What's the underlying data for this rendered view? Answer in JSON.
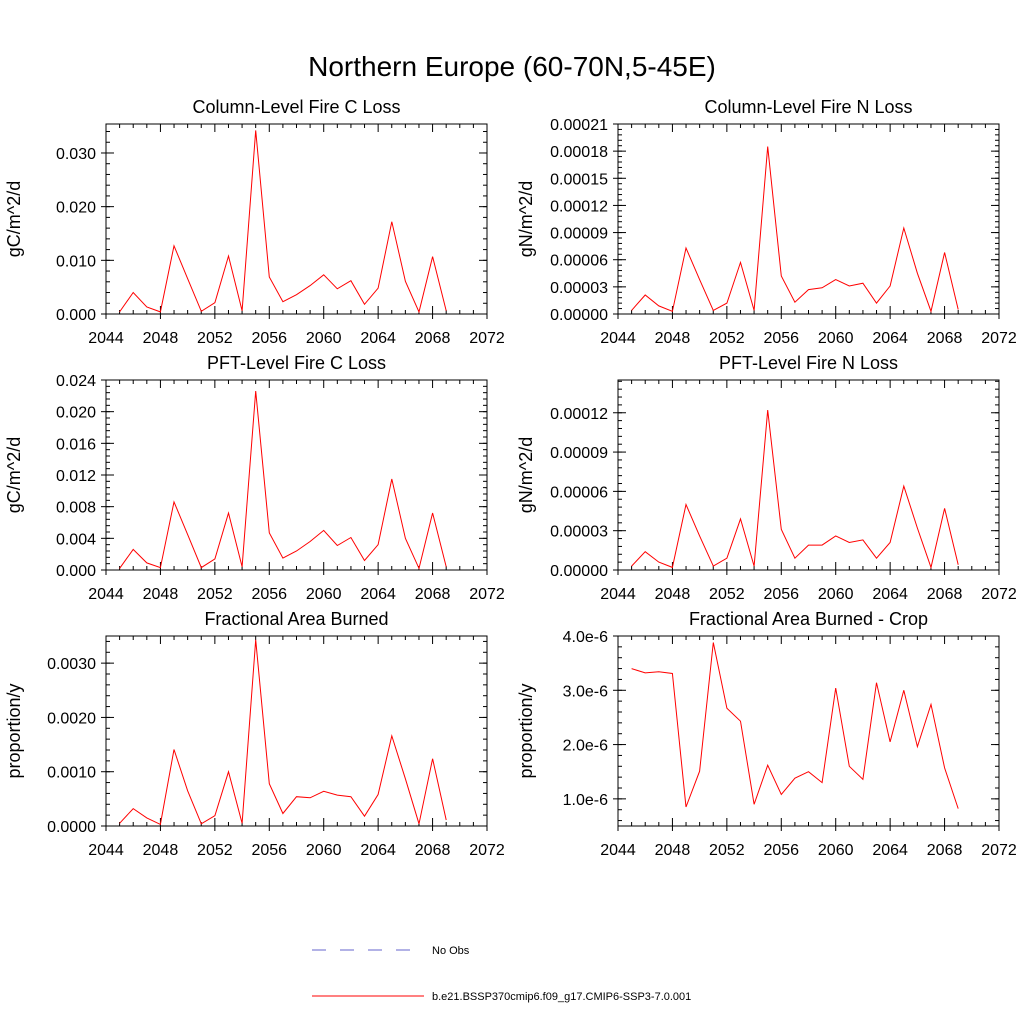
{
  "figure": {
    "title": "Northern Europe (60-70N,5-45E)",
    "legend": [
      {
        "label": "No Obs",
        "color": "#6666cc",
        "dashed": true
      },
      {
        "label": "b.e21.BSSP370cmip6.f09_g17.CMIP6-SSP3-7.0.001",
        "color": "#ff0000",
        "dashed": false
      }
    ]
  },
  "chart_data": [
    {
      "type": "line",
      "title": "Column-Level Fire C Loss",
      "ylabel": "gC/m^2/d",
      "xlim": [
        2044,
        2072
      ],
      "ylim": [
        0,
        0.0354
      ],
      "xticks": [
        "2044",
        "2048",
        "2052",
        "2056",
        "2060",
        "2064",
        "2068",
        "2072"
      ],
      "yticks": [
        "0.000",
        "0.010",
        "0.020",
        "0.030"
      ],
      "ytick_values": [
        0,
        0.01,
        0.02,
        0.03
      ],
      "x": [
        2045,
        2046,
        2047,
        2048,
        2049,
        2050,
        2051,
        2052,
        2053,
        2054,
        2055,
        2056,
        2057,
        2058,
        2059,
        2060,
        2061,
        2062,
        2063,
        2064,
        2065,
        2066,
        2067,
        2068,
        2069
      ],
      "series": [
        {
          "color": "#ff0000",
          "values": [
            0.0004,
            0.004,
            0.0013,
            0.0004,
            0.0127,
            0.0066,
            0.0005,
            0.0021,
            0.0108,
            0.0006,
            0.0342,
            0.0069,
            0.0023,
            0.0036,
            0.0053,
            0.0073,
            0.0047,
            0.0062,
            0.0018,
            0.0048,
            0.0172,
            0.0061,
            0.0004,
            0.0107,
            0.0006
          ]
        }
      ]
    },
    {
      "type": "line",
      "title": "Column-Level Fire N Loss",
      "ylabel": "gN/m^2/d",
      "xlim": [
        2044,
        2072
      ],
      "ylim": [
        0,
        0.00021
      ],
      "xticks": [
        "2044",
        "2048",
        "2052",
        "2056",
        "2060",
        "2064",
        "2068",
        "2072"
      ],
      "yticks": [
        "0.00000",
        "0.00003",
        "0.00006",
        "0.00009",
        "0.00012",
        "0.00015",
        "0.00018",
        "0.00021"
      ],
      "ytick_values": [
        0,
        3e-05,
        6e-05,
        9e-05,
        0.00012,
        0.00015,
        0.00018,
        0.00021
      ],
      "x": [
        2045,
        2046,
        2047,
        2048,
        2049,
        2050,
        2051,
        2052,
        2053,
        2054,
        2055,
        2056,
        2057,
        2058,
        2059,
        2060,
        2061,
        2062,
        2063,
        2064,
        2065,
        2066,
        2067,
        2068,
        2069
      ],
      "series": [
        {
          "color": "#ff0000",
          "values": [
            4e-06,
            2.1e-05,
            9e-06,
            3e-06,
            7.3e-05,
            3.8e-05,
            4e-06,
            1.2e-05,
            5.7e-05,
            4e-06,
            0.000185,
            4.2e-05,
            1.3e-05,
            2.7e-05,
            2.9e-05,
            3.8e-05,
            3.1e-05,
            3.4e-05,
            1.2e-05,
            3.1e-05,
            9.5e-05,
            4.5e-05,
            3e-06,
            6.8e-05,
            5e-06
          ]
        }
      ]
    },
    {
      "type": "line",
      "title": "PFT-Level Fire C Loss",
      "ylabel": "gC/m^2/d",
      "xlim": [
        2044,
        2072
      ],
      "ylim": [
        0,
        0.024
      ],
      "xticks": [
        "2044",
        "2048",
        "2052",
        "2056",
        "2060",
        "2064",
        "2068",
        "2072"
      ],
      "yticks": [
        "0.000",
        "0.004",
        "0.008",
        "0.012",
        "0.016",
        "0.020",
        "0.024"
      ],
      "ytick_values": [
        0,
        0.004,
        0.008,
        0.012,
        0.016,
        0.02,
        0.024
      ],
      "x": [
        2045,
        2046,
        2047,
        2048,
        2049,
        2050,
        2051,
        2052,
        2053,
        2054,
        2055,
        2056,
        2057,
        2058,
        2059,
        2060,
        2061,
        2062,
        2063,
        2064,
        2065,
        2066,
        2067,
        2068,
        2069
      ],
      "series": [
        {
          "color": "#ff0000",
          "values": [
            0.0002,
            0.0026,
            0.0009,
            0.0003,
            0.0086,
            0.0045,
            0.0003,
            0.0014,
            0.0072,
            0.0004,
            0.0226,
            0.0047,
            0.0015,
            0.0024,
            0.0036,
            0.005,
            0.0031,
            0.0041,
            0.0012,
            0.0032,
            0.0115,
            0.004,
            0.0002,
            0.0072,
            0.0004
          ]
        }
      ]
    },
    {
      "type": "line",
      "title": "PFT-Level Fire N Loss",
      "ylabel": "gN/m^2/d",
      "xlim": [
        2044,
        2072
      ],
      "ylim": [
        0,
        0.000145
      ],
      "xticks": [
        "2044",
        "2048",
        "2052",
        "2056",
        "2060",
        "2064",
        "2068",
        "2072"
      ],
      "yticks": [
        "0.00000",
        "0.00003",
        "0.00006",
        "0.00009",
        "0.00012"
      ],
      "ytick_values": [
        0,
        3e-05,
        6e-05,
        9e-05,
        0.00012
      ],
      "x": [
        2045,
        2046,
        2047,
        2048,
        2049,
        2050,
        2051,
        2052,
        2053,
        2054,
        2055,
        2056,
        2057,
        2058,
        2059,
        2060,
        2061,
        2062,
        2063,
        2064,
        2065,
        2066,
        2067,
        2068,
        2069
      ],
      "series": [
        {
          "color": "#ff0000",
          "values": [
            3e-06,
            1.4e-05,
            6e-06,
            2e-06,
            5e-05,
            2.6e-05,
            3e-06,
            9e-06,
            3.9e-05,
            3e-06,
            0.000122,
            3.1e-05,
            9e-06,
            1.9e-05,
            1.9e-05,
            2.6e-05,
            2.1e-05,
            2.3e-05,
            9e-06,
            2.1e-05,
            6.4e-05,
            3.2e-05,
            2e-06,
            4.7e-05,
            4e-06
          ]
        }
      ]
    },
    {
      "type": "line",
      "title": "Fractional Area Burned",
      "ylabel": "proportion/y",
      "xlim": [
        2044,
        2072
      ],
      "ylim": [
        0,
        0.0035
      ],
      "xticks": [
        "2044",
        "2048",
        "2052",
        "2056",
        "2060",
        "2064",
        "2068",
        "2072"
      ],
      "yticks": [
        "0.0000",
        "0.0010",
        "0.0020",
        "0.0030"
      ],
      "ytick_values": [
        0,
        0.001,
        0.002,
        0.003
      ],
      "x": [
        2045,
        2046,
        2047,
        2048,
        2049,
        2050,
        2051,
        2052,
        2053,
        2054,
        2055,
        2056,
        2057,
        2058,
        2059,
        2060,
        2061,
        2062,
        2063,
        2064,
        2065,
        2066,
        2067,
        2068,
        2069
      ],
      "series": [
        {
          "color": "#ff0000",
          "values": [
            5e-05,
            0.00032,
            0.00015,
            3e-05,
            0.00141,
            0.00065,
            4e-05,
            0.00019,
            0.001,
            5e-05,
            0.00343,
            0.00078,
            0.00023,
            0.00054,
            0.00052,
            0.00064,
            0.00057,
            0.00054,
            0.00018,
            0.00058,
            0.00166,
            0.00087,
            4e-05,
            0.00124,
            0.00011
          ]
        }
      ]
    },
    {
      "type": "line",
      "title": "Fractional Area Burned - Crop",
      "ylabel": "proportion/y",
      "xlim": [
        2044,
        2072
      ],
      "ylim": [
        5e-07,
        4e-06
      ],
      "xticks": [
        "2044",
        "2048",
        "2052",
        "2056",
        "2060",
        "2064",
        "2068",
        "2072"
      ],
      "yticks": [
        "1.0e-6",
        "2.0e-6",
        "3.0e-6",
        "4.0e-6"
      ],
      "ytick_values": [
        1e-06,
        2e-06,
        3e-06,
        4e-06
      ],
      "x": [
        2045,
        2046,
        2047,
        2048,
        2049,
        2050,
        2051,
        2052,
        2053,
        2054,
        2055,
        2056,
        2057,
        2058,
        2059,
        2060,
        2061,
        2062,
        2063,
        2064,
        2065,
        2066,
        2067,
        2068,
        2069
      ],
      "series": [
        {
          "color": "#ff0000",
          "values": [
            3.4e-06,
            3.32e-06,
            3.34e-06,
            3.31e-06,
            8.5e-07,
            1.51e-06,
            3.88e-06,
            2.67e-06,
            2.43e-06,
            9e-07,
            1.62e-06,
            1.08e-06,
            1.38e-06,
            1.5e-06,
            1.3e-06,
            3.04e-06,
            1.6e-06,
            1.36e-06,
            3.14e-06,
            2.05e-06,
            3e-06,
            1.96e-06,
            2.74e-06,
            1.57e-06,
            8.2e-07
          ]
        }
      ]
    }
  ]
}
